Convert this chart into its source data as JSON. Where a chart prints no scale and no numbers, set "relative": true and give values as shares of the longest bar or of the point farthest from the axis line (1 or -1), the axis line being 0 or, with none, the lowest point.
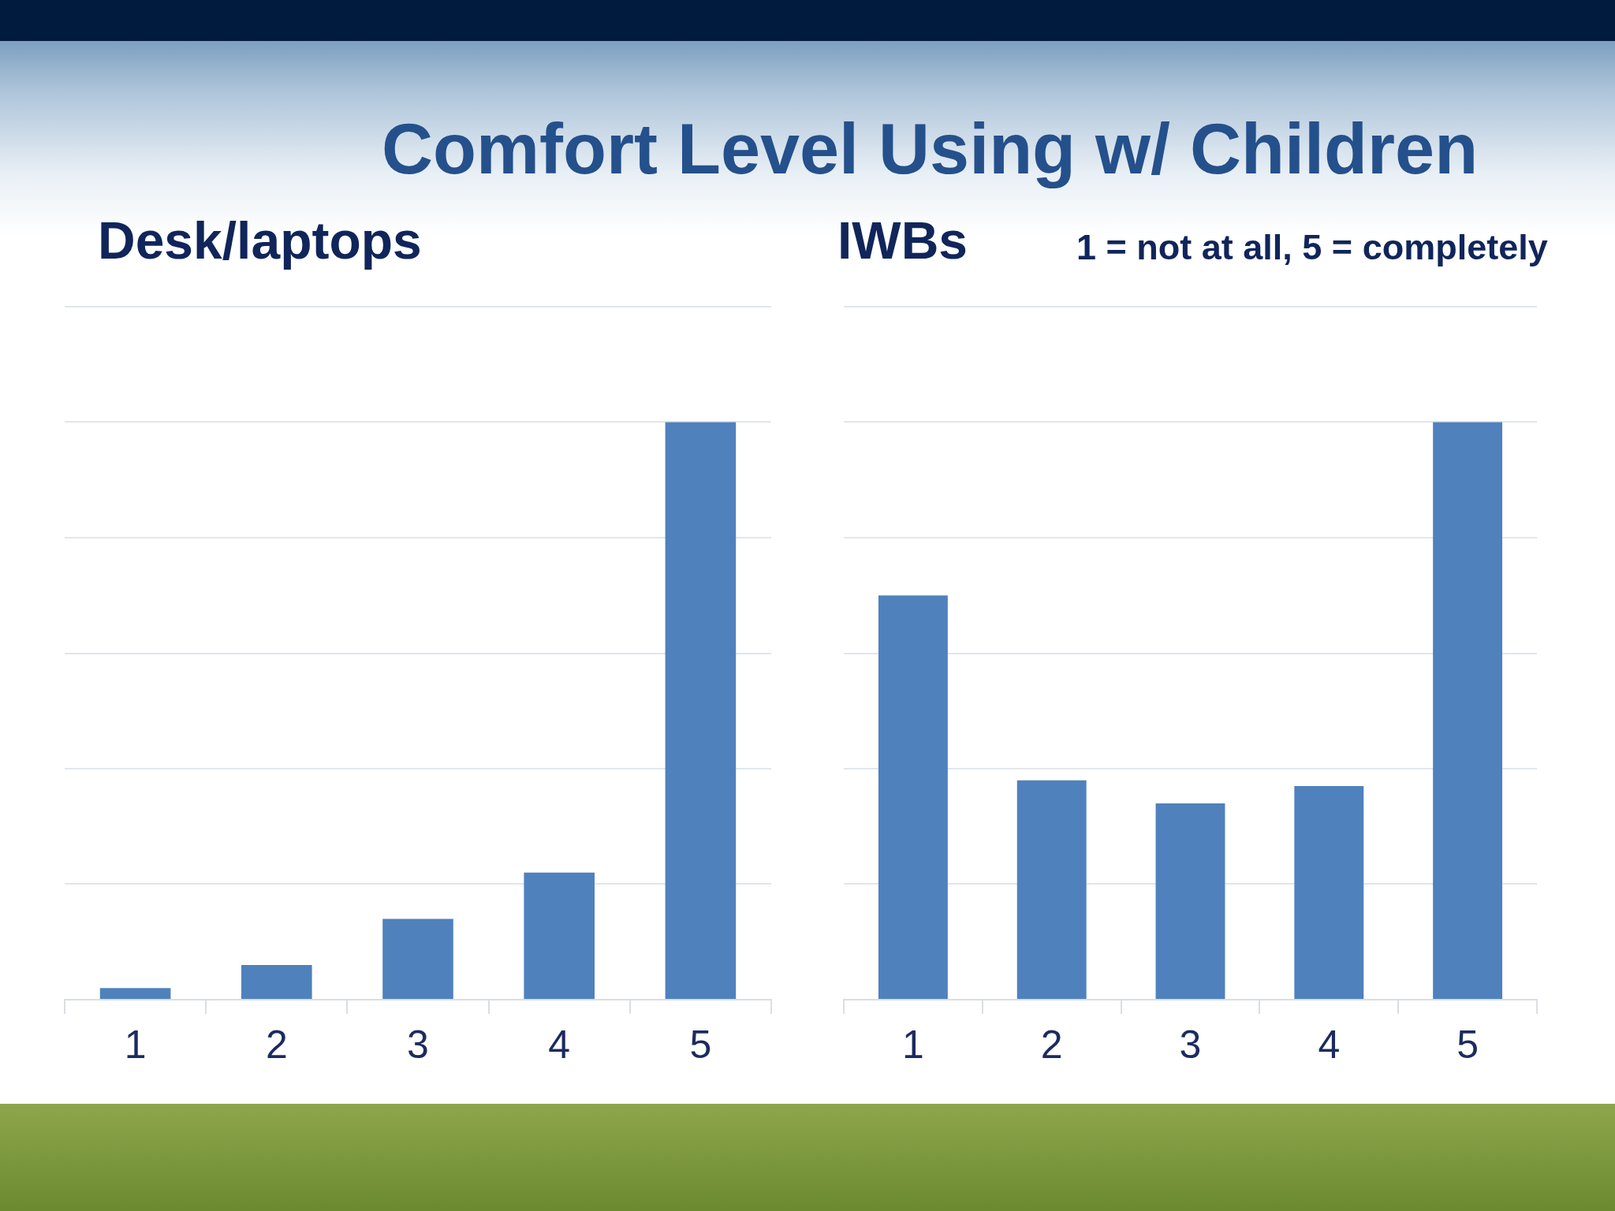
{
  "chart_data": [
    {
      "type": "bar",
      "title": "Comfort Level Using w/ Children",
      "subtitle": "Desk/laptops",
      "categories": [
        "1",
        "2",
        "3",
        "4",
        "5"
      ],
      "values": [
        0.02,
        0.06,
        0.14,
        0.22,
        1
      ],
      "color": "#4f81bd",
      "relative": true,
      "grid": "y"
    },
    {
      "type": "bar",
      "subtitle": "IWBs",
      "annotations": [
        "1 = not at all, 5 = completely"
      ],
      "categories": [
        "1",
        "2",
        "3",
        "4",
        "5"
      ],
      "values": [
        0.7,
        0.38,
        0.34,
        0.37,
        1
      ],
      "color": "#4f81bd",
      "relative": true,
      "grid": "y"
    }
  ]
}
